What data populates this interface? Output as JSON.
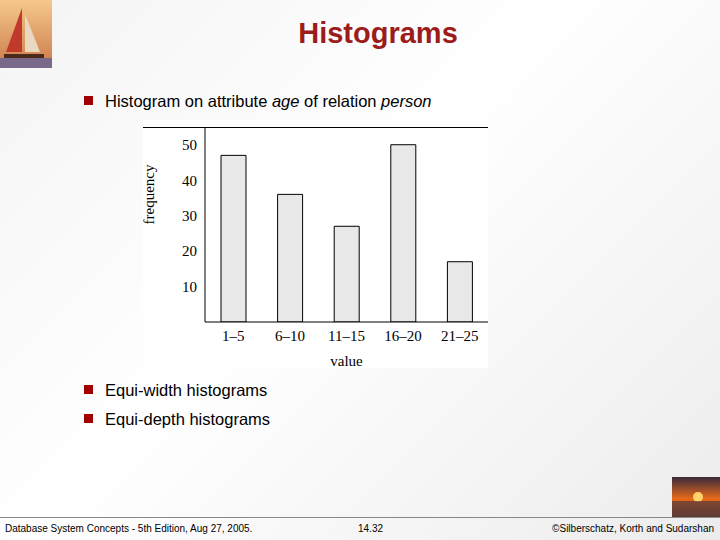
{
  "slide": {
    "title": "Histograms",
    "bullets": [
      [
        {
          "text": "Histogram on attribute "
        },
        {
          "text": "age",
          "italic": true
        },
        {
          "text": " of relation "
        },
        {
          "text": "person",
          "italic": true
        }
      ],
      [
        {
          "text": "Equi-width histograms"
        }
      ],
      [
        {
          "text": "Equi-depth histograms"
        }
      ]
    ],
    "footer": {
      "left": "Database System Concepts - 5th Edition, Aug 27, 2005.",
      "center": "14.32",
      "right": "©Silberschatz, Korth and Sudarshan"
    }
  },
  "chart_data": {
    "type": "bar",
    "categories": [
      "1–5",
      "6–10",
      "11–15",
      "16–20",
      "21–25"
    ],
    "values": [
      47,
      36,
      27,
      50,
      17
    ],
    "color": "#e8e8e8",
    "ylim": [
      0,
      55
    ],
    "yticks": [
      10,
      20,
      30,
      40,
      50
    ],
    "x_label": "value",
    "y_label": "frequency",
    "grid": false
  }
}
